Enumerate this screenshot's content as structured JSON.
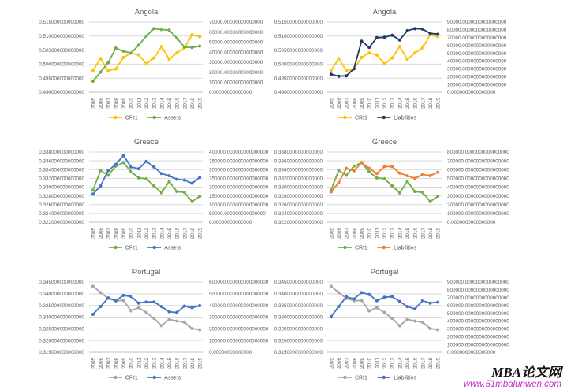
{
  "watermark": {
    "brand": "MBA论文网",
    "url": "www.51mbalunwen.com",
    "brand_color": "#141414",
    "url_color": "#c32bd2"
  },
  "style": {
    "grid_color": "#D9D9D9",
    "axis_color": "#BFBFBF",
    "text_color": "#595959",
    "background": "#ffffff"
  },
  "chart_data": [
    {
      "id": "angola-assets",
      "type": "line",
      "title": "Angola",
      "categories": [
        "2005",
        "2006",
        "2007",
        "2008",
        "2009",
        "2010",
        "2011",
        "2012",
        "2013",
        "2014",
        "2015",
        "2016",
        "2017",
        "2018",
        "2019"
      ],
      "grid": true,
      "legend_position": "bottom",
      "left_axis": {
        "min": 0.49,
        "max": 0.515,
        "ticks": [
          "0.515000000000000",
          "0.510000000000000",
          "0.505000000000000",
          "0.500000000000000",
          "0.495000000000000",
          "0.490000000000000"
        ]
      },
      "right_axis": {
        "min": 0,
        "max": 70000,
        "ticks": [
          "70000.00000000000000",
          "60000.00000000000000",
          "50000.00000000000000",
          "40000.00000000000000",
          "30000.00000000000000",
          "20000.00000000000000",
          "10000.00000000000000",
          "0.00000000000000"
        ]
      },
      "series": [
        {
          "name": "CRI1",
          "axis": "left",
          "color": "#FFC000",
          "values": [
            0.4977,
            0.502,
            0.4977,
            0.4983,
            0.5024,
            0.504,
            0.5033,
            0.5001,
            0.5022,
            0.5063,
            0.5017,
            0.504,
            0.5058,
            0.5105,
            0.5098
          ]
        },
        {
          "name": "Assets",
          "axis": "right",
          "color": "#70AD47",
          "values": [
            11000,
            20000,
            29500,
            44000,
            41000,
            39000,
            47000,
            56000,
            63500,
            62500,
            62000,
            54000,
            45000,
            44500,
            46000
          ]
        }
      ]
    },
    {
      "id": "angola-liabilities",
      "type": "line",
      "title": "Angola",
      "categories": [
        "2005",
        "2006",
        "2007",
        "2008",
        "2009",
        "2010",
        "2011",
        "2012",
        "2013",
        "2014",
        "2015",
        "2016",
        "2017",
        "2018",
        "2019"
      ],
      "grid": true,
      "legend_position": "bottom",
      "left_axis": {
        "min": 0.49,
        "max": 0.515,
        "ticks": [
          "0.5150000000000000",
          "0.5100000000000000",
          "0.5050000000000000",
          "0.5000000000000000",
          "0.4950000000000000",
          "0.4900000000000000"
        ]
      },
      "right_axis": {
        "min": 0,
        "max": 90000,
        "ticks": [
          "90000.0000000000000000",
          "80000.0000000000000000",
          "70000.0000000000000000",
          "60000.0000000000000000",
          "50000.0000000000000000",
          "40000.0000000000000000",
          "30000.0000000000000000",
          "20000.0000000000000000",
          "10000.0000000000000000",
          "0.0000000000000000"
        ]
      },
      "series": [
        {
          "name": "CRI1",
          "axis": "left",
          "color": "#FFC000",
          "values": [
            0.4977,
            0.502,
            0.4977,
            0.4983,
            0.5024,
            0.504,
            0.5033,
            0.5001,
            0.5022,
            0.5063,
            0.5017,
            0.504,
            0.5058,
            0.5105,
            0.5098
          ]
        },
        {
          "name": "Liabilities",
          "axis": "right",
          "color": "#203864",
          "values": [
            23000,
            20500,
            21000,
            30000,
            65500,
            57500,
            70000,
            70500,
            73000,
            67000,
            79000,
            81500,
            81000,
            75500,
            74500
          ]
        }
      ]
    },
    {
      "id": "greece-assets",
      "type": "line",
      "title": "Greece",
      "categories": [
        "2005",
        "2006",
        "2007",
        "2008",
        "2009",
        "2010",
        "2011",
        "2012",
        "2013",
        "2014",
        "2015",
        "2016",
        "2017",
        "2018",
        "2019"
      ],
      "grid": true,
      "legend_position": "bottom",
      "left_axis": {
        "min": 0.322,
        "max": 0.338,
        "ticks": [
          "0.338000000000000",
          "0.336000000000000",
          "0.334000000000000",
          "0.332000000000000",
          "0.330000000000000",
          "0.328000000000000",
          "0.326000000000000",
          "0.324000000000000",
          "0.322000000000000"
        ]
      },
      "right_axis": {
        "min": 0,
        "max": 400000,
        "ticks": [
          "400000.000000000000000",
          "350000.000000000000000",
          "300000.000000000000000",
          "250000.000000000000000",
          "200000.000000000000000",
          "150000.000000000000000",
          "100000.000000000000000",
          "50000.000000000000000",
          "0.00000000000000"
        ]
      },
      "series": [
        {
          "name": "CRI1",
          "axis": "left",
          "color": "#70AD47",
          "values": [
            0.3293,
            0.3338,
            0.3327,
            0.3348,
            0.3356,
            0.3335,
            0.3321,
            0.3319,
            0.3303,
            0.3287,
            0.3313,
            0.329,
            0.3288,
            0.3267,
            0.3279
          ]
        },
        {
          "name": "Assets",
          "axis": "right",
          "color": "#4472C4",
          "values": [
            160000,
            207000,
            295000,
            330000,
            380000,
            315000,
            305000,
            347000,
            315000,
            277000,
            265000,
            245000,
            240000,
            222000,
            255000
          ]
        }
      ]
    },
    {
      "id": "greece-liabilities",
      "type": "line",
      "title": "Greece",
      "categories": [
        "2005",
        "2006",
        "2007",
        "2008",
        "2009",
        "2010",
        "2011",
        "2012",
        "2013",
        "2014",
        "2015",
        "2016",
        "2017",
        "2018",
        "2019"
      ],
      "grid": true,
      "legend_position": "bottom",
      "left_axis": {
        "min": 0.322,
        "max": 0.338,
        "ticks": [
          "0.3380000000000000",
          "0.3360000000000000",
          "0.3340000000000000",
          "0.3320000000000000",
          "0.3300000000000000",
          "0.3280000000000000",
          "0.3260000000000000",
          "0.3240000000000000",
          "0.3220000000000000"
        ]
      },
      "right_axis": {
        "min": 0,
        "max": 800000,
        "ticks": [
          "800000.0000000000000000",
          "700000.0000000000000000",
          "600000.0000000000000000",
          "500000.0000000000000000",
          "400000.0000000000000000",
          "300000.0000000000000000",
          "200000.0000000000000000",
          "100000.0000000000000000",
          "0.0000000000000000"
        ]
      },
      "series": [
        {
          "name": "CRI1",
          "axis": "left",
          "color": "#70AD47",
          "values": [
            0.3293,
            0.3338,
            0.3327,
            0.3348,
            0.3356,
            0.3335,
            0.3321,
            0.3319,
            0.3303,
            0.3287,
            0.3313,
            0.329,
            0.3288,
            0.3267,
            0.3279
          ]
        },
        {
          "name": "Liabilities",
          "axis": "right",
          "color": "#ED7D31",
          "values": [
            345000,
            450000,
            615000,
            585000,
            680000,
            615000,
            555000,
            635000,
            635000,
            560000,
            530000,
            500000,
            545000,
            530000,
            570000
          ]
        }
      ]
    },
    {
      "id": "portugal-assets",
      "type": "line",
      "title": "Portugal",
      "categories": [
        "2005",
        "2006",
        "2007",
        "2008",
        "2009",
        "2010",
        "2011",
        "2012",
        "2013",
        "2014",
        "2015",
        "2016",
        "2017",
        "2018",
        "2019"
      ],
      "grid": true,
      "legend_position": "bottom",
      "left_axis": {
        "min": 0.315,
        "max": 0.345,
        "ticks": [
          "0.345000000000000",
          "0.340000000000000",
          "0.335000000000000",
          "0.330000000000000",
          "0.325000000000000",
          "0.320000000000000",
          "0.315000000000000"
        ]
      },
      "right_axis": {
        "min": 0,
        "max": 600000,
        "ticks": [
          "600000.000000000000000",
          "500000.000000000000000",
          "400000.000000000000000",
          "300000.000000000000000",
          "200000.000000000000000",
          "100000.000000000000000",
          "0.00000000000000"
        ]
      },
      "series": [
        {
          "name": "CRI1",
          "axis": "left",
          "color": "#A5A5A5",
          "values": [
            0.3432,
            0.3405,
            0.338,
            0.337,
            0.3371,
            0.3327,
            0.334,
            0.332,
            0.3295,
            0.3263,
            0.3291,
            0.3283,
            0.3278,
            0.3251,
            0.3246
          ]
        },
        {
          "name": "Assets",
          "axis": "right",
          "color": "#4472C4",
          "values": [
            324000,
            390000,
            464000,
            440000,
            486000,
            476000,
            420000,
            430000,
            430000,
            390000,
            346000,
            340000,
            394000,
            380000,
            398000
          ]
        }
      ]
    },
    {
      "id": "portugal-liabilities",
      "type": "line",
      "title": "Portugal",
      "categories": [
        "2005",
        "2006",
        "2007",
        "2008",
        "2009",
        "2010",
        "2011",
        "2012",
        "2013",
        "2014",
        "2015",
        "2016",
        "2017",
        "2018",
        "2019"
      ],
      "grid": true,
      "legend_position": "bottom",
      "left_axis": {
        "min": 0.315,
        "max": 0.345,
        "ticks": [
          "0.3450000000000000",
          "0.3400000000000000",
          "0.3350000000000000",
          "0.3300000000000000",
          "0.3250000000000000",
          "0.3200000000000000",
          "0.3150000000000000"
        ]
      },
      "right_axis": {
        "min": 0,
        "max": 900000,
        "ticks": [
          "900000.0000000000000000",
          "800000.0000000000000000",
          "700000.0000000000000000",
          "600000.0000000000000000",
          "500000.0000000000000000",
          "400000.0000000000000000",
          "300000.0000000000000000",
          "200000.0000000000000000",
          "100000.0000000000000000",
          "0.0000000000000000"
        ]
      },
      "series": [
        {
          "name": "CRI1",
          "axis": "left",
          "color": "#A5A5A5",
          "values": [
            0.3432,
            0.3405,
            0.338,
            0.337,
            0.3371,
            0.3327,
            0.334,
            0.332,
            0.3295,
            0.3263,
            0.3291,
            0.3283,
            0.3278,
            0.3251,
            0.3246
          ]
        },
        {
          "name": "Liabilities",
          "axis": "right",
          "color": "#4472C4",
          "values": [
            456000,
            585000,
            711000,
            684000,
            765000,
            741000,
            660000,
            705000,
            714000,
            651000,
            585000,
            555000,
            660000,
            630000,
            642000
          ]
        }
      ]
    }
  ]
}
